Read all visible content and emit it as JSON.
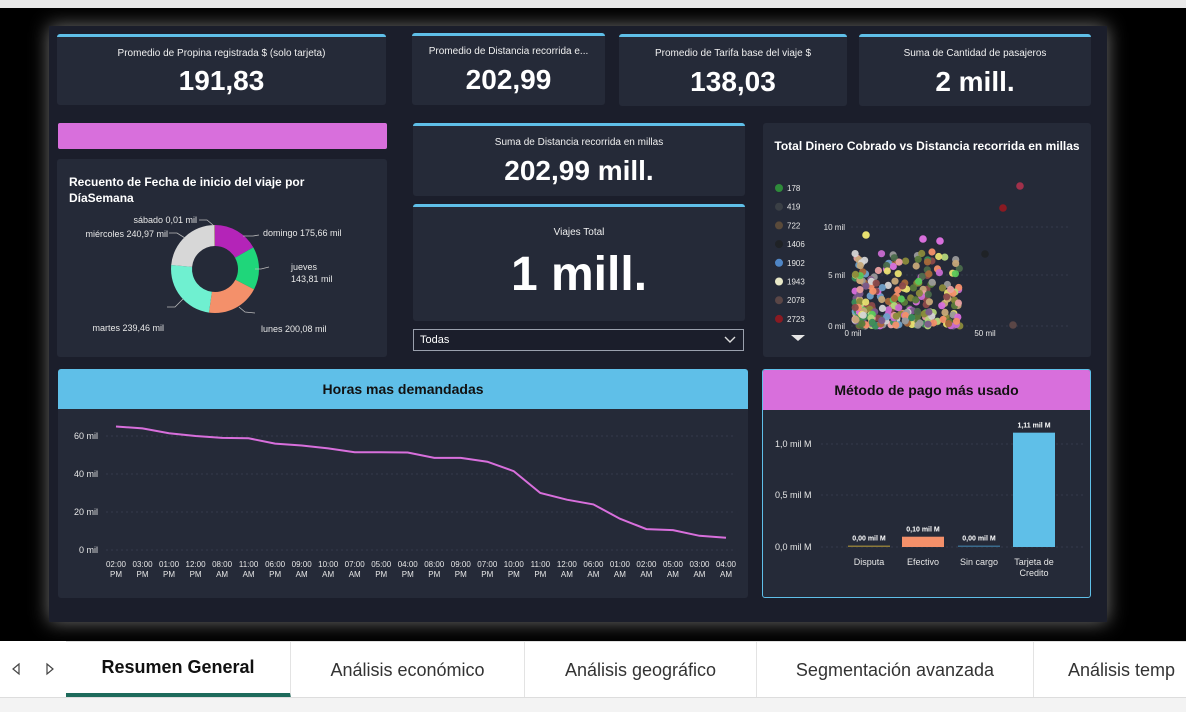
{
  "kpis": {
    "tip_label": "Promedio de Propina registrada $ (solo tarjeta)",
    "tip_value": "191,83",
    "dist_avg_label": "Promedio de Distancia recorrida e...",
    "dist_avg_value": "202,99",
    "fare_label": "Promedio de Tarifa base del viaje $",
    "fare_value": "138,03",
    "pass_label": "Suma de Cantidad de pasajeros",
    "pass_value": "2 mill.",
    "dist_sum_label": "Suma de Distancia recorrida en millas",
    "dist_sum_value": "202,99 mill.",
    "trips_label": "Viajes Total",
    "trips_value": "1 mill."
  },
  "slicer": {
    "value": "Todas"
  },
  "colors": {
    "accent_blue": "#5fbfe8",
    "accent_pink": "#d86fdc",
    "line": "#d86fdc"
  },
  "donut": {
    "title": "Recuento de Fecha de inicio del viaje por DíaSemana",
    "labels": {
      "sabado": "sábado 0,01 mil",
      "miercoles": "miércoles 240,97 mil",
      "domingo": "domingo 175,66 mil",
      "jueves_1": "jueves",
      "jueves_2": "143,81 mil",
      "martes": "martes 239,46 mil",
      "lunes": "lunes 200,08 mil"
    }
  },
  "scatter": {
    "title": "Total Dinero Cobrado vs Distancia recorrida en millas",
    "legend": [
      {
        "label": "178",
        "color": "#2e8b3a"
      },
      {
        "label": "419",
        "color": "#3a3f45"
      },
      {
        "label": "722",
        "color": "#5a4a3a"
      },
      {
        "label": "1406",
        "color": "#1f2226"
      },
      {
        "label": "1902",
        "color": "#4f86c6"
      },
      {
        "label": "1943",
        "color": "#e8e8c8"
      },
      {
        "label": "2078",
        "color": "#5a4646"
      },
      {
        "label": "2723",
        "color": "#8a1a22"
      }
    ],
    "y_ticks": [
      "10 mil",
      "5 mil",
      "0 mil"
    ],
    "x_ticks": [
      "0 mil",
      "50 mil"
    ]
  },
  "line_chart": {
    "title": "Horas mas demandadas",
    "y_ticks": [
      "60 mil",
      "40 mil",
      "20 mil",
      "0 mil"
    ],
    "x_labels": [
      [
        "02:00",
        "PM"
      ],
      [
        "03:00",
        "PM"
      ],
      [
        "01:00",
        "PM"
      ],
      [
        "12:00",
        "PM"
      ],
      [
        "08:00",
        "AM"
      ],
      [
        "11:00",
        "AM"
      ],
      [
        "06:00",
        "PM"
      ],
      [
        "09:00",
        "AM"
      ],
      [
        "10:00",
        "AM"
      ],
      [
        "07:00",
        "AM"
      ],
      [
        "05:00",
        "PM"
      ],
      [
        "04:00",
        "PM"
      ],
      [
        "08:00",
        "PM"
      ],
      [
        "09:00",
        "PM"
      ],
      [
        "07:00",
        "PM"
      ],
      [
        "10:00",
        "PM"
      ],
      [
        "11:00",
        "PM"
      ],
      [
        "12:00",
        "AM"
      ],
      [
        "06:00",
        "AM"
      ],
      [
        "01:00",
        "AM"
      ],
      [
        "02:00",
        "AM"
      ],
      [
        "05:00",
        "AM"
      ],
      [
        "03:00",
        "AM"
      ],
      [
        "04:00",
        "AM"
      ]
    ],
    "values": [
      65,
      64,
      61.5,
      60,
      59,
      58.8,
      56,
      55,
      53.5,
      51.5,
      51.5,
      51.3,
      48.5,
      48.5,
      46.5,
      41.5,
      30,
      26.5,
      24,
      16.5,
      11,
      10.5,
      7.5,
      6.5
    ],
    "ymax": 70
  },
  "payment_chart": {
    "title": "Método de pago más usado",
    "y_ticks": [
      "1,0 mil M",
      "0,5 mil M",
      "0,0 mil M"
    ],
    "categories": [
      {
        "name": [
          "Disputa"
        ],
        "value": 0.0,
        "label": "0,00 mil M",
        "color": "#8c7a3a"
      },
      {
        "name": [
          "Efectivo"
        ],
        "value": 0.1,
        "label": "0,10 mil M",
        "color": "#f4906a"
      },
      {
        "name": [
          "Sin cargo"
        ],
        "value": 0.0,
        "label": "0,00 mil M",
        "color": "#3a6b8c"
      },
      {
        "name": [
          "Tarjeta de",
          "Credito"
        ],
        "value": 1.11,
        "label": "1,11 mil M",
        "color": "#5fbfe8"
      }
    ],
    "ymax": 1.2
  },
  "tabs": [
    "Resumen General",
    "Análisis económico",
    "Análisis geográfico",
    "Segmentación avanzada",
    "Análisis temp"
  ]
}
